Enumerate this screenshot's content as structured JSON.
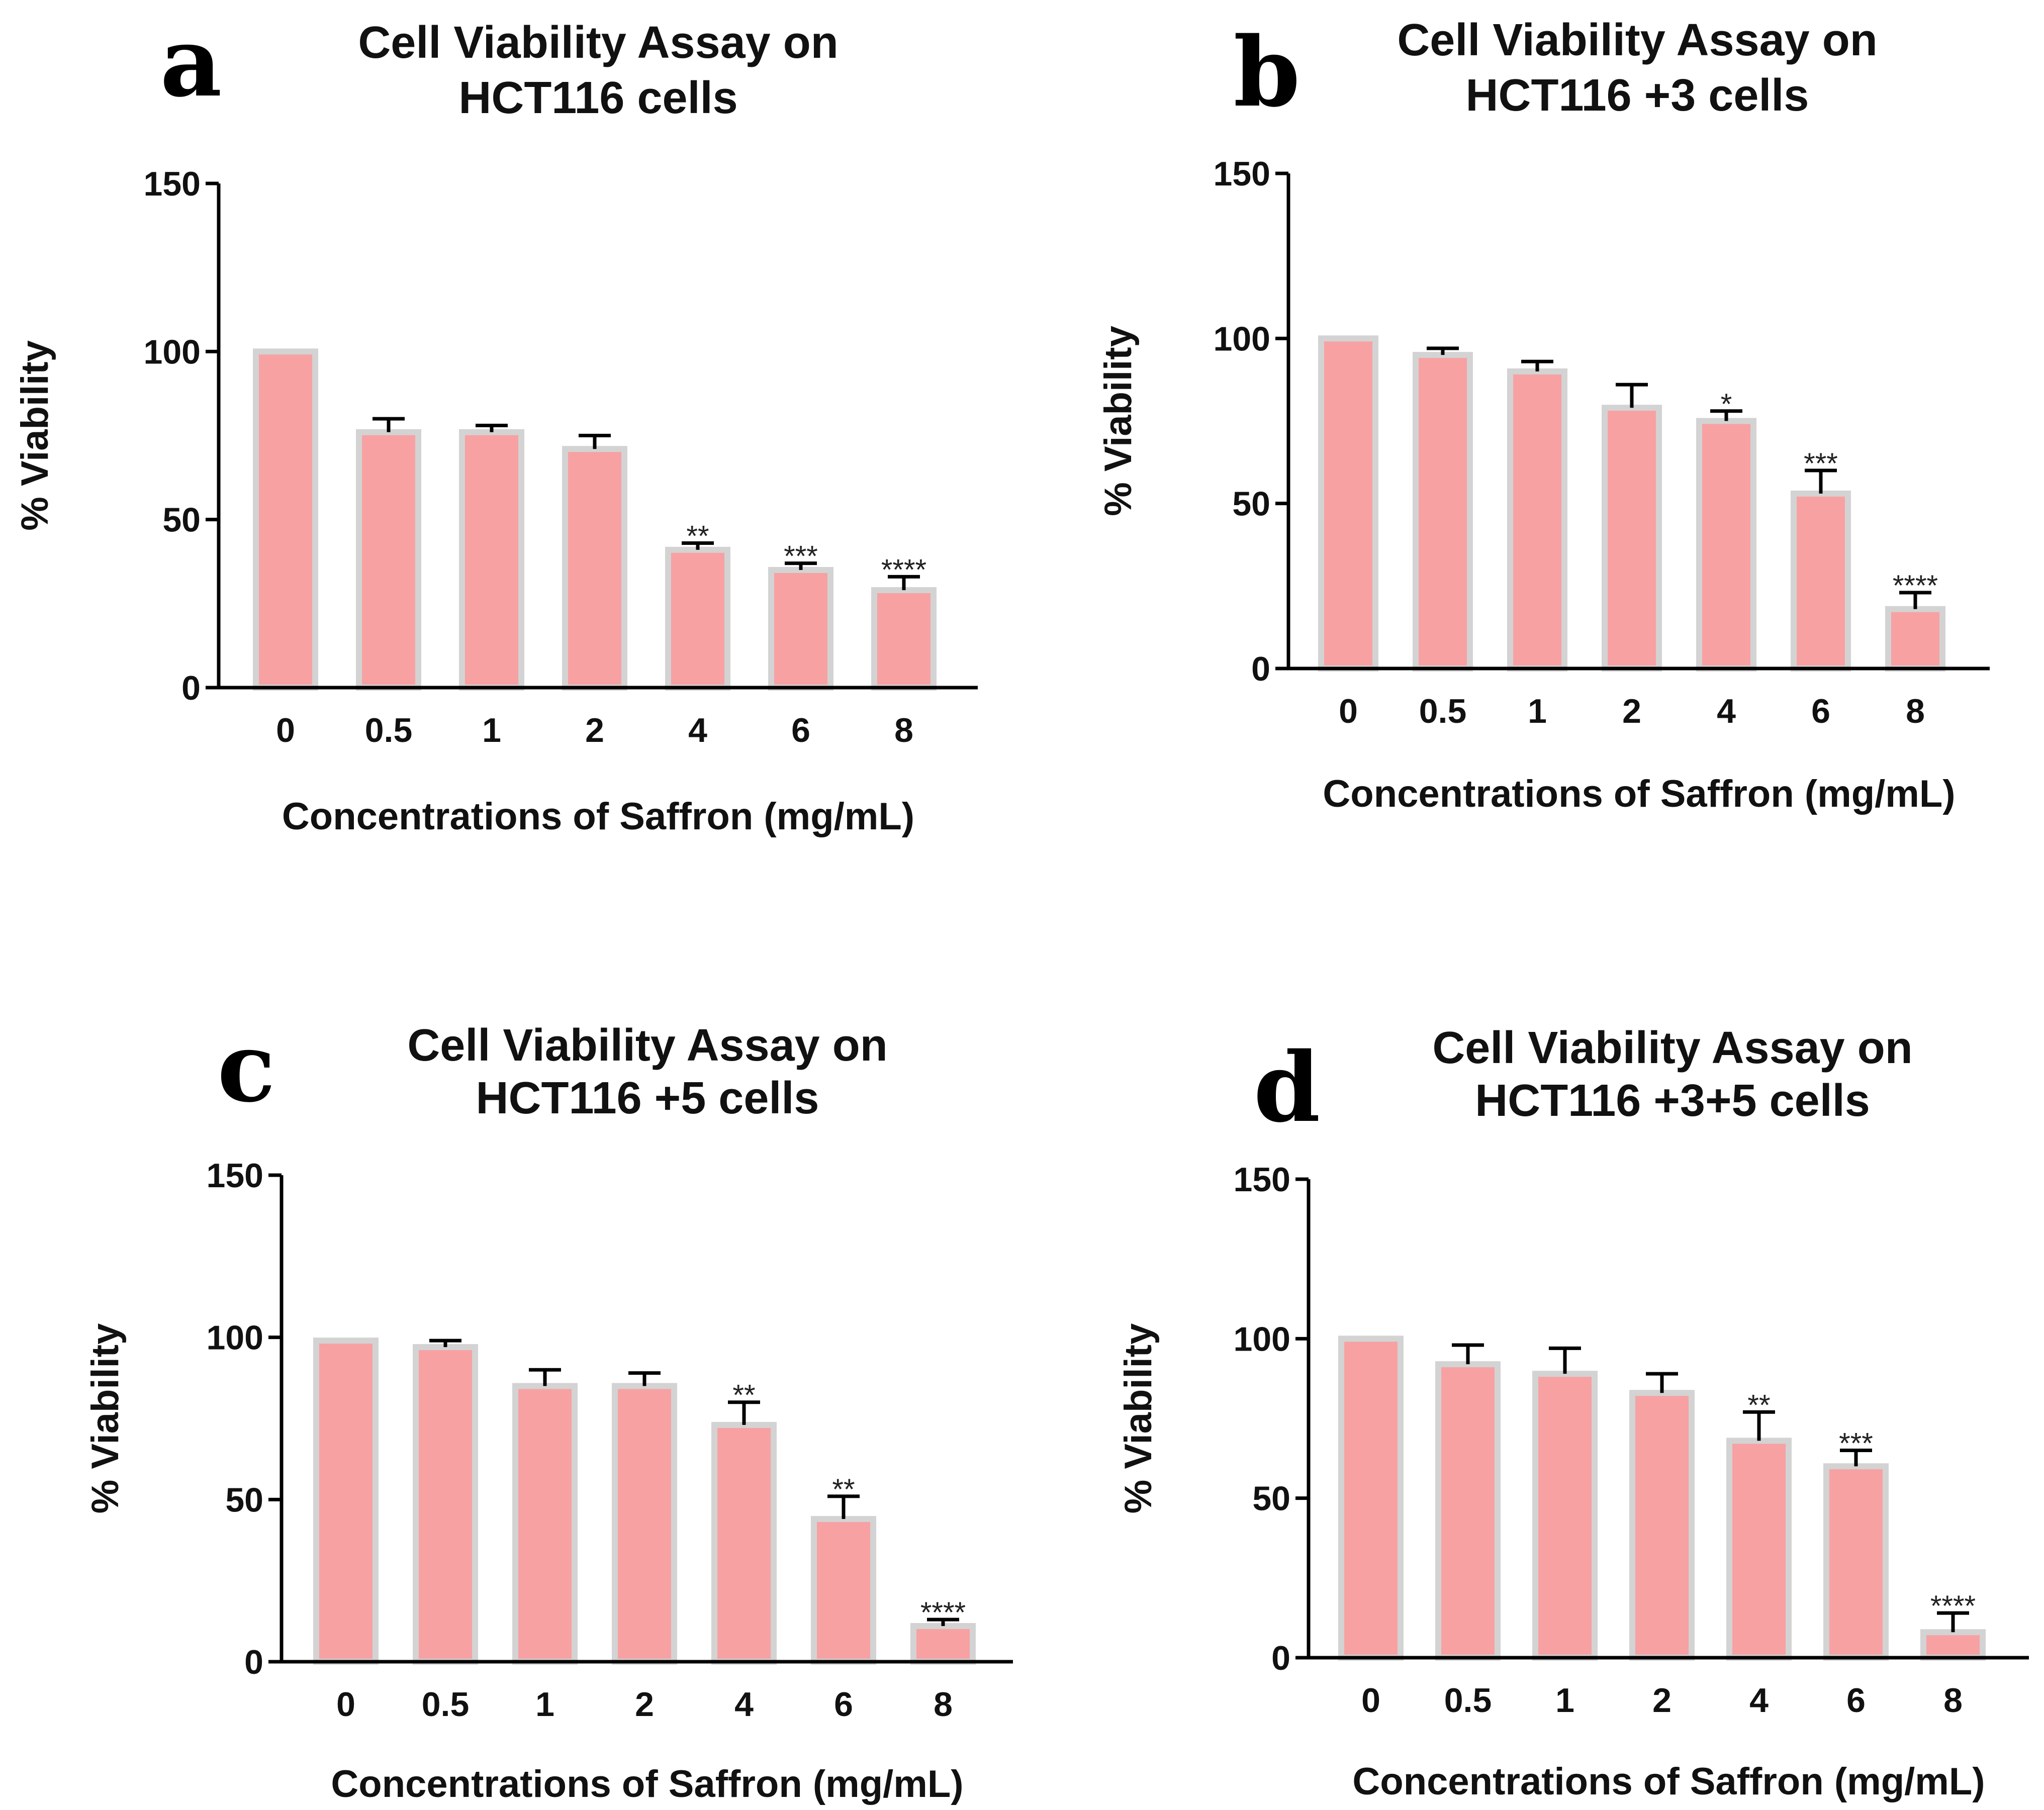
{
  "colors": {
    "bar_fill": "#F7A1A3",
    "bar_edge": "#D3D3D3",
    "axis": "#000000",
    "text": "#111111"
  },
  "chart_data": [
    {
      "panel": "a",
      "type": "bar",
      "title": [
        "Cell Viability Assay on",
        "HCT116 cells"
      ],
      "xlabel": "Concentrations of Saffron (mg/mL)",
      "ylabel": "% Viability",
      "categories": [
        "0",
        "0.5",
        "1",
        "2",
        "4",
        "6",
        "8"
      ],
      "values": [
        100,
        76,
        76,
        71,
        41,
        35,
        29
      ],
      "errors": [
        0,
        4,
        2,
        4,
        2,
        2,
        4
      ],
      "significance": [
        "",
        "",
        "",
        "",
        "**",
        "***",
        "****"
      ],
      "ylim": [
        0,
        150
      ],
      "yticks": [
        0,
        50,
        100,
        150
      ]
    },
    {
      "panel": "b",
      "type": "bar",
      "title": [
        "Cell Viability Assay on",
        "HCT116 +3 cells"
      ],
      "xlabel": "Concentrations of Saffron (mg/mL)",
      "ylabel": "% Viability",
      "categories": [
        "0",
        "0.5",
        "1",
        "2",
        "4",
        "6",
        "8"
      ],
      "values": [
        100,
        95,
        90,
        79,
        75,
        53,
        18
      ],
      "errors": [
        0,
        2,
        3,
        7,
        3,
        7,
        5
      ],
      "significance": [
        "",
        "",
        "",
        "",
        "*",
        "***",
        "****"
      ],
      "ylim": [
        0,
        150
      ],
      "yticks": [
        0,
        50,
        100,
        150
      ]
    },
    {
      "panel": "c",
      "type": "bar",
      "title": [
        "Cell Viability Assay on",
        "HCT116 +5 cells"
      ],
      "xlabel": "Concentrations of Saffron (mg/mL)",
      "ylabel": "% Viability",
      "categories": [
        "0",
        "0.5",
        "1",
        "2",
        "4",
        "6",
        "8"
      ],
      "values": [
        99,
        97,
        85,
        85,
        73,
        44,
        11
      ],
      "errors": [
        0,
        2,
        5,
        4,
        7,
        7,
        2
      ],
      "significance": [
        "",
        "",
        "",
        "",
        "**",
        "**",
        "****"
      ],
      "ylim": [
        0,
        150
      ],
      "yticks": [
        0,
        50,
        100,
        150
      ]
    },
    {
      "panel": "d",
      "type": "bar",
      "title": [
        "Cell Viability Assay on",
        "HCT116 +3+5 cells"
      ],
      "xlabel": "Concentrations of Saffron (mg/mL)",
      "ylabel": "% Viability",
      "categories": [
        "0",
        "0.5",
        "1",
        "2",
        "4",
        "6",
        "8"
      ],
      "values": [
        100,
        92,
        89,
        83,
        68,
        60,
        8
      ],
      "errors": [
        0,
        6,
        8,
        6,
        9,
        5,
        6
      ],
      "significance": [
        "",
        "",
        "",
        "",
        "**",
        "***",
        "****"
      ],
      "ylim": [
        0,
        150
      ],
      "yticks": [
        0,
        50,
        100,
        150
      ]
    }
  ]
}
